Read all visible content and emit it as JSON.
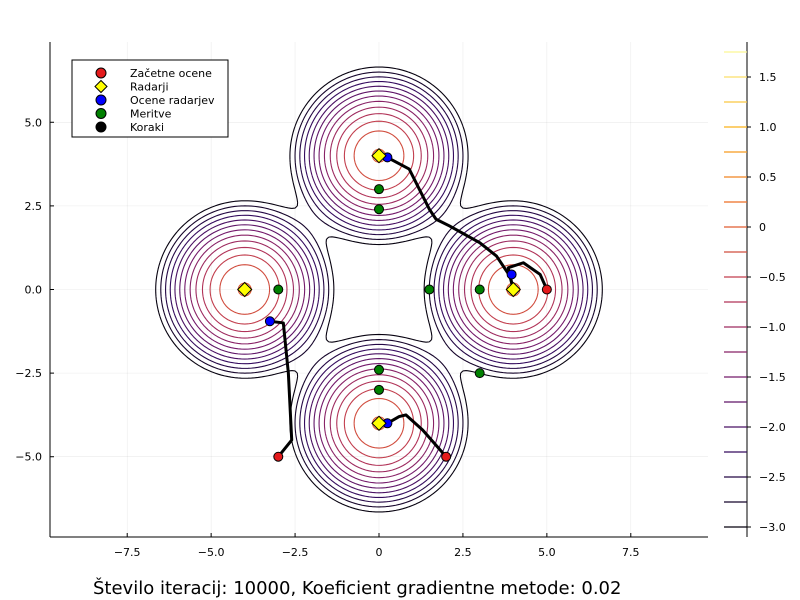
{
  "caption": "Število iteracij: 10000, Koeficient gradientne metode: 0.02",
  "chart_data": {
    "type": "scatter",
    "xlim": [
      -9.8,
      9.8
    ],
    "ylim": [
      -7.4,
      7.4
    ],
    "x_ticks": [
      -7.5,
      -5.0,
      -2.5,
      0.0,
      2.5,
      5.0,
      7.5
    ],
    "x_tick_labels": [
      "−7.5",
      "−5.0",
      "−2.5",
      "0",
      "2.5",
      "5.0",
      "7.5"
    ],
    "y_ticks": [
      -5.0,
      -2.5,
      0.0,
      2.5,
      5.0
    ],
    "y_tick_labels": [
      "−5.0",
      "−2.5",
      "0.0",
      "2.5",
      "5.0"
    ],
    "grid": true,
    "legend_position": "top-left",
    "contour": {
      "sources": [
        [
          -4,
          0
        ],
        [
          4,
          0
        ],
        [
          0,
          4
        ],
        [
          0,
          -4
        ]
      ],
      "levels": [
        -3.0,
        -2.75,
        -2.5,
        -2.25,
        -2.0,
        -1.75,
        -1.5,
        -1.25,
        -1.0,
        -0.75,
        -0.5,
        -0.25,
        0.0,
        0.25,
        0.5,
        0.75,
        1.0,
        1.25,
        1.5,
        1.75
      ],
      "colorbar_range": [
        -3.1,
        1.85
      ],
      "colorbar_ticks": [
        -3.0,
        -2.5,
        -2.0,
        -1.5,
        -1.0,
        -0.5,
        0,
        0.5,
        1.0,
        1.5
      ],
      "colorbar_tick_labels": [
        "−3.0",
        "−2.5",
        "−2.0",
        "−1.5",
        "−1.0",
        "−0.5",
        "0",
        "0.5",
        "1.0",
        "1.5"
      ],
      "colormap": [
        "#000004",
        "#320a5e",
        "#781b6c",
        "#bb3754",
        "#ec6824",
        "#fbb41a",
        "#fcffa4"
      ]
    },
    "series": [
      {
        "name": "Začetne ocene",
        "marker": "circle",
        "color": "#e41a1c",
        "points": [
          [
            5,
            0
          ],
          [
            -3,
            -5
          ],
          [
            2,
            -5
          ]
        ]
      },
      {
        "name": "Radarji",
        "marker": "diamond",
        "color": "#ffff00",
        "points": [
          [
            -4,
            0
          ],
          [
            0,
            4
          ],
          [
            4,
            0
          ],
          [
            0,
            -4
          ]
        ]
      },
      {
        "name": "Ocene radarjev",
        "marker": "circle",
        "color": "#0000ff",
        "points": [
          [
            0.25,
            3.95
          ],
          [
            3.95,
            0.45
          ],
          [
            -3.25,
            -0.95
          ],
          [
            0.25,
            -4.0
          ]
        ]
      },
      {
        "name": "Meritve",
        "marker": "circle",
        "color": "#008000",
        "points": [
          [
            0,
            3.0
          ],
          [
            0,
            2.4
          ],
          [
            -3.0,
            0
          ],
          [
            1.5,
            0
          ],
          [
            3.0,
            0
          ],
          [
            0,
            -2.4
          ],
          [
            0,
            -3.0
          ],
          [
            3.0,
            -2.5
          ]
        ]
      },
      {
        "name": "Koraki",
        "marker": "circle",
        "color": "#000000",
        "points": []
      }
    ],
    "paths": [
      [
        [
          0.25,
          3.95
        ],
        [
          0.9,
          3.6
        ],
        [
          1.35,
          2.7
        ],
        [
          1.5,
          2.4
        ],
        [
          1.7,
          2.1
        ],
        [
          2.1,
          1.9
        ],
        [
          3.0,
          1.4
        ],
        [
          3.5,
          1.0
        ],
        [
          3.9,
          0.4
        ],
        [
          4.0,
          0.0
        ],
        [
          3.85,
          0.65
        ],
        [
          4.3,
          0.8
        ],
        [
          4.8,
          0.45
        ],
        [
          5.0,
          0.0
        ]
      ],
      [
        [
          -3.25,
          -0.95
        ],
        [
          -2.85,
          -1.0
        ],
        [
          -2.7,
          -2.5
        ],
        [
          -2.6,
          -4.5
        ],
        [
          -3.0,
          -5.0
        ]
      ],
      [
        [
          0.25,
          -4.0
        ],
        [
          0.6,
          -3.8
        ],
        [
          0.8,
          -3.75
        ],
        [
          1.3,
          -4.2
        ],
        [
          2.0,
          -5.0
        ]
      ]
    ]
  }
}
